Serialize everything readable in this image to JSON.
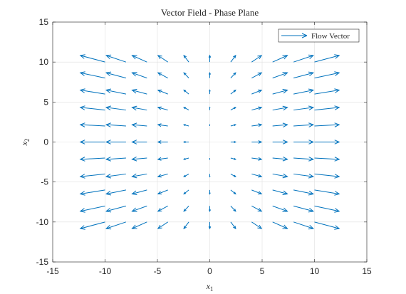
{
  "chart_data": {
    "type": "quiver",
    "title": "Vector Field - Phase Plane",
    "xlabel": "x",
    "xlabel_subscript": "1",
    "ylabel": "x",
    "ylabel_subscript": "2",
    "xlim": [
      -15,
      15
    ],
    "ylim": [
      -15,
      15
    ],
    "xticks": [
      -15,
      -10,
      -5,
      0,
      5,
      10,
      15
    ],
    "yticks": [
      -15,
      -10,
      -5,
      0,
      5,
      10,
      15
    ],
    "grid": true,
    "legend": {
      "position": "top-right",
      "entries": [
        "Flow Vector"
      ]
    },
    "series": [
      {
        "name": "Flow Vector",
        "color": "#0072BD",
        "grid_x": [
          -10,
          -8,
          -6,
          -4,
          -2,
          0,
          2,
          4,
          6,
          8,
          10
        ],
        "grid_y": [
          -10,
          -8,
          -6,
          -4,
          -2,
          0,
          2,
          4,
          6,
          8,
          10
        ],
        "field": {
          "u": "0.2*x",
          "v": "0.07*y"
        },
        "autoscale": 1.25
      }
    ]
  },
  "colors": {
    "axis": "#262626",
    "grid": "#dfdfdf",
    "vector": "#0072BD"
  }
}
